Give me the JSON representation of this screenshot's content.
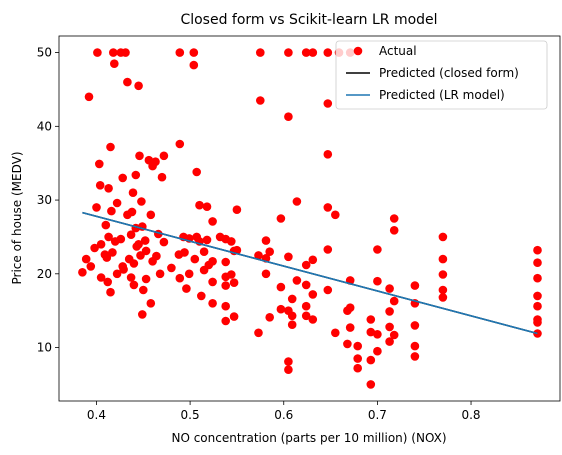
{
  "chart_data": {
    "type": "scatter",
    "title": "Closed form vs Scikit-learn LR model",
    "xlabel": "NO concentration (parts per 10 million) (NOX)",
    "ylabel": "Price of house (MEDV)",
    "xlim": [
      0.36,
      0.895
    ],
    "ylim": [
      2.75,
      52.25
    ],
    "xticks": [
      0.4,
      0.5,
      0.6,
      0.7,
      0.8
    ],
    "yticks": [
      10,
      20,
      30,
      40,
      50
    ],
    "legend_position": "top-right",
    "grid": false,
    "series": [
      {
        "name": "Actual",
        "kind": "scatter",
        "color": "#ff0000",
        "points": [
          [
            0.385,
            20.2
          ],
          [
            0.389,
            22.0
          ],
          [
            0.392,
            44.0
          ],
          [
            0.394,
            21.0
          ],
          [
            0.398,
            23.5
          ],
          [
            0.4,
            29.0
          ],
          [
            0.401,
            50.0
          ],
          [
            0.403,
            34.9
          ],
          [
            0.404,
            32.0
          ],
          [
            0.405,
            24.0
          ],
          [
            0.405,
            19.5
          ],
          [
            0.409,
            22.6
          ],
          [
            0.41,
            26.6
          ],
          [
            0.411,
            22.2
          ],
          [
            0.412,
            18.9
          ],
          [
            0.413,
            31.6
          ],
          [
            0.413,
            25.0
          ],
          [
            0.415,
            17.5
          ],
          [
            0.415,
            37.2
          ],
          [
            0.416,
            28.5
          ],
          [
            0.417,
            22.9
          ],
          [
            0.418,
            50.0
          ],
          [
            0.419,
            48.5
          ],
          [
            0.42,
            24.4
          ],
          [
            0.422,
            20.0
          ],
          [
            0.422,
            29.6
          ],
          [
            0.426,
            24.7
          ],
          [
            0.426,
            50.0
          ],
          [
            0.428,
            33.0
          ],
          [
            0.428,
            21.0
          ],
          [
            0.429,
            20.6
          ],
          [
            0.431,
            50.0
          ],
          [
            0.433,
            46.0
          ],
          [
            0.433,
            28.0
          ],
          [
            0.435,
            22.0
          ],
          [
            0.437,
            19.5
          ],
          [
            0.437,
            25.3
          ],
          [
            0.438,
            28.4
          ],
          [
            0.439,
            31.0
          ],
          [
            0.44,
            21.4
          ],
          [
            0.44,
            18.5
          ],
          [
            0.442,
            26.2
          ],
          [
            0.442,
            33.4
          ],
          [
            0.443,
            23.7
          ],
          [
            0.445,
            45.5
          ],
          [
            0.445,
            24.0
          ],
          [
            0.446,
            36.0
          ],
          [
            0.447,
            22.5
          ],
          [
            0.448,
            29.8
          ],
          [
            0.449,
            14.5
          ],
          [
            0.449,
            26.4
          ],
          [
            0.45,
            17.8
          ],
          [
            0.452,
            24.5
          ],
          [
            0.453,
            19.3
          ],
          [
            0.453,
            23.1
          ],
          [
            0.456,
            35.4
          ],
          [
            0.458,
            28.0
          ],
          [
            0.458,
            16.0
          ],
          [
            0.46,
            34.6
          ],
          [
            0.46,
            21.7
          ],
          [
            0.463,
            35.2
          ],
          [
            0.464,
            22.4
          ],
          [
            0.466,
            25.4
          ],
          [
            0.468,
            20.0
          ],
          [
            0.47,
            33.1
          ],
          [
            0.472,
            36.0
          ],
          [
            0.472,
            24.3
          ],
          [
            0.48,
            20.8
          ],
          [
            0.488,
            22.6
          ],
          [
            0.489,
            19.4
          ],
          [
            0.489,
            50.0
          ],
          [
            0.489,
            37.6
          ],
          [
            0.493,
            25.0
          ],
          [
            0.494,
            22.9
          ],
          [
            0.496,
            18.0
          ],
          [
            0.499,
            24.8
          ],
          [
            0.499,
            20.0
          ],
          [
            0.504,
            50.0
          ],
          [
            0.504,
            48.3
          ],
          [
            0.505,
            22.0
          ],
          [
            0.507,
            25.0
          ],
          [
            0.507,
            33.8
          ],
          [
            0.51,
            24.4
          ],
          [
            0.51,
            29.3
          ],
          [
            0.512,
            17.0
          ],
          [
            0.515,
            20.5
          ],
          [
            0.515,
            23.0
          ],
          [
            0.518,
            24.6
          ],
          [
            0.518,
            29.1
          ],
          [
            0.52,
            21.2
          ],
          [
            0.524,
            27.1
          ],
          [
            0.524,
            18.9
          ],
          [
            0.524,
            21.7
          ],
          [
            0.524,
            16.0
          ],
          [
            0.532,
            25.0
          ],
          [
            0.538,
            24.7
          ],
          [
            0.538,
            21.6
          ],
          [
            0.538,
            19.6
          ],
          [
            0.538,
            18.4
          ],
          [
            0.538,
            15.6
          ],
          [
            0.538,
            13.6
          ],
          [
            0.544,
            24.4
          ],
          [
            0.544,
            19.9
          ],
          [
            0.547,
            23.1
          ],
          [
            0.547,
            18.8
          ],
          [
            0.547,
            14.2
          ],
          [
            0.55,
            28.7
          ],
          [
            0.55,
            23.2
          ],
          [
            0.573,
            22.5
          ],
          [
            0.573,
            12.0
          ],
          [
            0.575,
            50.0
          ],
          [
            0.575,
            43.5
          ],
          [
            0.581,
            24.5
          ],
          [
            0.581,
            22.1
          ],
          [
            0.581,
            20.0
          ],
          [
            0.585,
            23.0
          ],
          [
            0.585,
            14.1
          ],
          [
            0.597,
            27.5
          ],
          [
            0.597,
            18.2
          ],
          [
            0.597,
            15.2
          ],
          [
            0.605,
            50.0
          ],
          [
            0.605,
            41.3
          ],
          [
            0.605,
            22.3
          ],
          [
            0.605,
            15.0
          ],
          [
            0.605,
            8.1
          ],
          [
            0.605,
            7.0
          ],
          [
            0.609,
            16.6
          ],
          [
            0.609,
            14.3
          ],
          [
            0.609,
            13.1
          ],
          [
            0.614,
            29.8
          ],
          [
            0.614,
            19.1
          ],
          [
            0.624,
            50.0
          ],
          [
            0.624,
            21.2
          ],
          [
            0.624,
            18.5
          ],
          [
            0.624,
            15.6
          ],
          [
            0.624,
            14.3
          ],
          [
            0.631,
            50.0
          ],
          [
            0.631,
            21.9
          ],
          [
            0.631,
            17.2
          ],
          [
            0.631,
            13.8
          ],
          [
            0.647,
            50.0
          ],
          [
            0.647,
            43.1
          ],
          [
            0.647,
            36.2
          ],
          [
            0.647,
            29.0
          ],
          [
            0.647,
            23.3
          ],
          [
            0.647,
            17.8
          ],
          [
            0.655,
            28.0
          ],
          [
            0.655,
            12.0
          ],
          [
            0.659,
            50.0
          ],
          [
            0.668,
            15.0
          ],
          [
            0.668,
            10.5
          ],
          [
            0.671,
            50.0
          ],
          [
            0.671,
            19.1
          ],
          [
            0.671,
            15.4
          ],
          [
            0.671,
            12.7
          ],
          [
            0.679,
            10.2
          ],
          [
            0.679,
            8.5
          ],
          [
            0.679,
            7.2
          ],
          [
            0.693,
            13.8
          ],
          [
            0.693,
            12.1
          ],
          [
            0.693,
            8.3
          ],
          [
            0.693,
            5.0
          ],
          [
            0.7,
            23.3
          ],
          [
            0.7,
            19.0
          ],
          [
            0.7,
            11.8
          ],
          [
            0.7,
            9.5
          ],
          [
            0.713,
            12.8
          ],
          [
            0.713,
            18.0
          ],
          [
            0.713,
            14.9
          ],
          [
            0.713,
            10.8
          ],
          [
            0.718,
            25.9
          ],
          [
            0.718,
            27.5
          ],
          [
            0.718,
            16.3
          ],
          [
            0.718,
            11.7
          ],
          [
            0.74,
            18.4
          ],
          [
            0.74,
            16.0
          ],
          [
            0.74,
            13.0
          ],
          [
            0.74,
            10.2
          ],
          [
            0.74,
            8.8
          ],
          [
            0.77,
            25.0
          ],
          [
            0.77,
            22.0
          ],
          [
            0.77,
            19.9
          ],
          [
            0.77,
            17.8
          ],
          [
            0.77,
            16.8
          ],
          [
            0.871,
            23.2
          ],
          [
            0.871,
            21.5
          ],
          [
            0.871,
            19.4
          ],
          [
            0.871,
            17.0
          ],
          [
            0.871,
            15.6
          ],
          [
            0.871,
            13.8
          ],
          [
            0.871,
            13.4
          ],
          [
            0.871,
            11.9
          ]
        ]
      },
      {
        "name": "Predicted (closed form)",
        "kind": "line",
        "color": "#000000",
        "x": [
          0.385,
          0.871
        ],
        "y": [
          28.3,
          11.9
        ]
      },
      {
        "name": "Predicted (LR model)",
        "kind": "line",
        "color": "#1f77b4",
        "x": [
          0.385,
          0.871
        ],
        "y": [
          28.3,
          11.9
        ]
      }
    ]
  }
}
